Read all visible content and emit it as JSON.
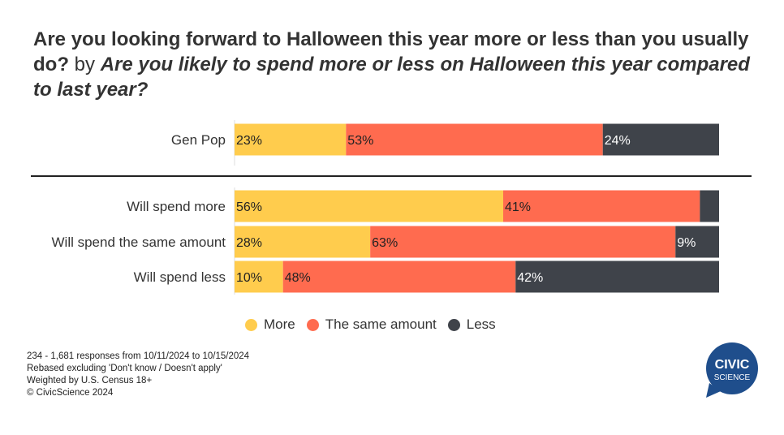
{
  "title": {
    "part1": "Are you looking forward to Halloween this year more or less than you usually do?",
    "connector": "by",
    "part2": "Are you likely to spend more or less on Halloween this year compared to last year?"
  },
  "chart_data": {
    "type": "bar",
    "orientation": "horizontal",
    "stacked": true,
    "normalized": true,
    "categories": [
      "Gen Pop",
      "Will spend more",
      "Will spend the same amount",
      "Will spend less"
    ],
    "series": [
      {
        "name": "More",
        "color": "#FFCC4D",
        "values": [
          23,
          56,
          28,
          10
        ],
        "labels": [
          "23%",
          "56%",
          "28%",
          "10%"
        ]
      },
      {
        "name": "The same amount",
        "color": "#FF6B4F",
        "values": [
          53,
          41,
          63,
          48
        ],
        "labels": [
          "53%",
          "41%",
          "63%",
          "48%"
        ]
      },
      {
        "name": "Less",
        "color": "#3F434A",
        "values": [
          24,
          4,
          9,
          42
        ],
        "labels": [
          "24%",
          "",
          "9%",
          "42%"
        ]
      }
    ],
    "xlim": [
      0,
      100
    ],
    "grid": false,
    "legend_position": "bottom"
  },
  "footnotes": [
    "234 - 1,681 responses from 10/11/2024 to 10/15/2024",
    "Rebased excluding 'Don't know / Doesn't apply'",
    "Weighted by U.S. Census 18+",
    "© CivicScience 2024"
  ],
  "logo": {
    "line1": "CIVIC",
    "line2": "SCIENCE",
    "color": "#1F4E8C"
  }
}
